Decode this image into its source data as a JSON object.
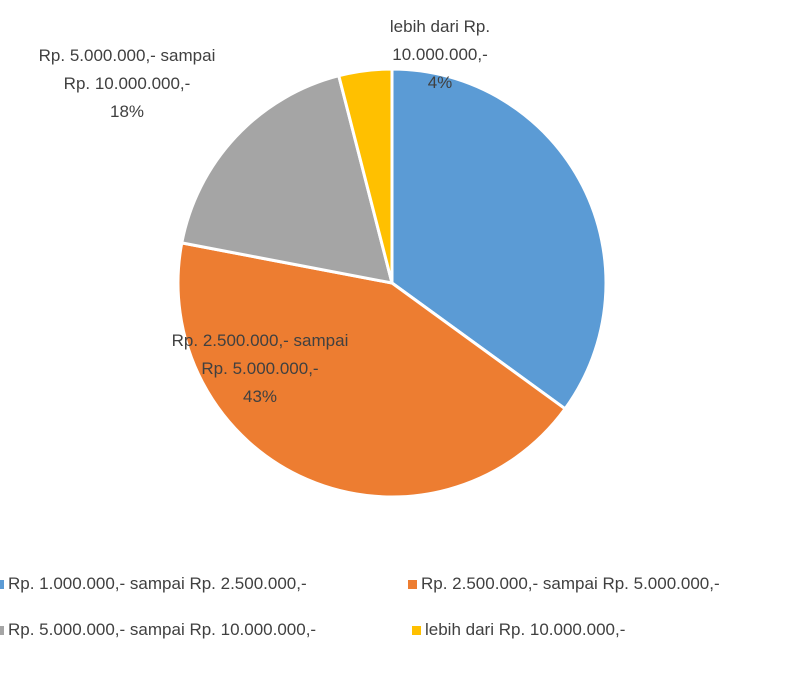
{
  "chart_data": {
    "type": "pie",
    "categories": [
      "Rp. 1.000.000,- sampai Rp. 2.500.000,-",
      "Rp. 2.500.000,- sampai Rp. 5.000.000,-",
      "Rp. 5.000.000,- sampai Rp. 10.000.000,-",
      "lebih dari Rp. 10.000.000,-"
    ],
    "values": [
      35,
      43,
      18,
      4
    ],
    "value_labels": [
      null,
      "43%",
      "18%",
      "4%"
    ],
    "colors": [
      "#5b9bd5",
      "#ed7d31",
      "#a5a5a5",
      "#ffc000"
    ],
    "legend": "bottom"
  }
}
